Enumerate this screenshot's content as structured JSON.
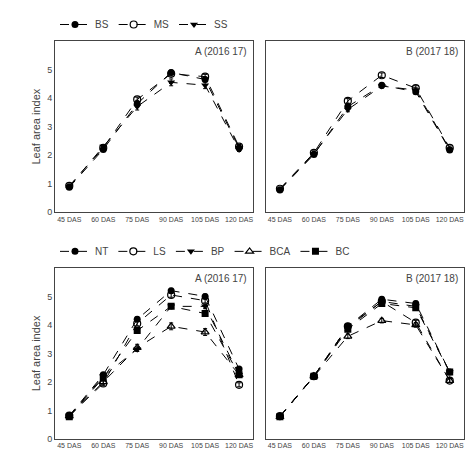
{
  "chart_data": [
    {
      "type": "line",
      "title": "A (2016 17)",
      "ylabel": "Leaf area index",
      "categories": [
        "45 DAS",
        "60 DAS",
        "75 DAS",
        "90 DAS",
        "105 DAS",
        "120 DAS"
      ],
      "series": [
        {
          "name": "BS",
          "color": "#000000",
          "marker": "circle",
          "line_style": "dashed",
          "values": [
            0.87,
            2.2,
            3.8,
            4.9,
            4.65,
            2.25
          ],
          "errors": [
            0.07,
            0.07,
            0.12,
            0.08,
            0.08,
            0.12
          ]
        },
        {
          "name": "MS",
          "color": "#000000",
          "marker": "circle-open",
          "line_style": "dashed",
          "values": [
            0.92,
            2.25,
            3.95,
            4.85,
            4.75,
            2.3
          ],
          "errors": [
            0.07,
            0.07,
            0.08,
            0.08,
            0.08,
            0.07
          ]
        },
        {
          "name": "SS",
          "color": "#000000",
          "marker": "triangle-down",
          "line_style": "dashed",
          "values": [
            0.9,
            2.3,
            3.7,
            4.55,
            4.45,
            2.2
          ],
          "errors": [
            0.07,
            0.07,
            0.12,
            0.12,
            0.12,
            0.07
          ]
        }
      ],
      "ylim": [
        0,
        6
      ],
      "yticks": [
        0,
        1,
        2,
        3,
        4,
        5
      ],
      "grid": false,
      "legend": "top"
    },
    {
      "type": "line",
      "title": "B (2017 18)",
      "categories": [
        "45 DAS",
        "60 DAS",
        "75 DAS",
        "90 DAS",
        "105 DAS",
        "120 DAS"
      ],
      "series": [
        {
          "name": "BS",
          "color": "#000000",
          "marker": "circle",
          "line_style": "dashed",
          "values": [
            0.78,
            2.02,
            3.7,
            4.45,
            4.22,
            2.18
          ],
          "errors": [
            0.06,
            0.07,
            0.08,
            0.08,
            0.08,
            0.07
          ]
        },
        {
          "name": "MS",
          "color": "#000000",
          "marker": "circle-open",
          "line_style": "dashed",
          "values": [
            0.82,
            2.08,
            3.9,
            4.8,
            4.35,
            2.25
          ],
          "errors": [
            0.06,
            0.07,
            0.08,
            0.08,
            0.08,
            0.07
          ]
        },
        {
          "name": "SS",
          "color": "#000000",
          "marker": "triangle-down",
          "line_style": "dashed",
          "values": [
            0.8,
            2.05,
            3.6,
            4.42,
            4.28,
            2.2
          ],
          "errors": [
            0.06,
            0.07,
            0.08,
            0.08,
            0.08,
            0.07
          ]
        }
      ],
      "ylim": [
        0,
        6
      ],
      "yticks": [
        0,
        1,
        2,
        3,
        4,
        5
      ],
      "grid": false,
      "tick_labels": "x"
    },
    {
      "type": "line",
      "title": "A (2016 17)",
      "ylabel": "Leaf area index",
      "categories": [
        "45 DAS",
        "60 DAS",
        "75 DAS",
        "90 DAS",
        "105 DAS",
        "120 DAS"
      ],
      "series": [
        {
          "name": "NT",
          "color": "#000000",
          "marker": "circle",
          "line_style": "dashed",
          "values": [
            0.82,
            2.25,
            4.2,
            5.2,
            5.0,
            2.45
          ],
          "errors": [
            0.07,
            0.08,
            0.08,
            0.08,
            0.08,
            0.07
          ]
        },
        {
          "name": "LS",
          "color": "#000000",
          "marker": "circle-open",
          "line_style": "dashed",
          "values": [
            0.82,
            1.95,
            4.05,
            5.05,
            4.85,
            1.9
          ],
          "errors": [
            0.07,
            0.08,
            0.08,
            0.08,
            0.08,
            0.07
          ]
        },
        {
          "name": "BP",
          "color": "#000000",
          "marker": "triangle-down",
          "line_style": "dashed",
          "values": [
            0.8,
            2.2,
            3.15,
            4.65,
            4.65,
            2.25
          ],
          "errors": [
            0.07,
            0.08,
            0.08,
            0.08,
            0.08,
            0.07
          ]
        },
        {
          "name": "BCA",
          "color": "#000000",
          "marker": "triangle-up-open",
          "line_style": "dashed",
          "values": [
            0.8,
            2.0,
            3.2,
            3.95,
            3.75,
            2.25
          ],
          "errors": [
            0.07,
            0.08,
            0.12,
            0.12,
            0.12,
            0.07
          ]
        },
        {
          "name": "BC",
          "color": "#000000",
          "marker": "square",
          "line_style": "dashed",
          "values": [
            0.78,
            2.15,
            3.8,
            4.65,
            4.4,
            2.25
          ],
          "errors": [
            0.07,
            0.08,
            0.08,
            0.08,
            0.08,
            0.07
          ]
        }
      ],
      "ylim": [
        0,
        6
      ],
      "yticks": [
        0,
        1,
        2,
        3,
        4,
        5
      ],
      "grid": false,
      "legend": "top"
    },
    {
      "type": "line",
      "title": "B (2017 18)",
      "categories": [
        "45 DAS",
        "60 DAS",
        "75 DAS",
        "90 DAS",
        "105 DAS",
        "120 DAS"
      ],
      "series": [
        {
          "name": "NT",
          "color": "#000000",
          "marker": "circle",
          "line_style": "dashed",
          "values": [
            0.8,
            2.2,
            3.95,
            4.9,
            4.75,
            2.35
          ],
          "errors": [
            0.07,
            0.07,
            0.08,
            0.08,
            0.08,
            0.07
          ]
        },
        {
          "name": "LS",
          "color": "#000000",
          "marker": "circle-open",
          "line_style": "dashed",
          "values": [
            0.8,
            2.2,
            3.95,
            4.82,
            4.08,
            2.05
          ],
          "errors": [
            0.07,
            0.07,
            0.08,
            0.08,
            0.08,
            0.07
          ]
        },
        {
          "name": "BP",
          "color": "#000000",
          "marker": "triangle-down",
          "line_style": "dashed",
          "values": [
            0.78,
            2.2,
            3.9,
            4.82,
            4.65,
            2.35
          ],
          "errors": [
            0.07,
            0.07,
            0.08,
            0.08,
            0.08,
            0.07
          ]
        },
        {
          "name": "BCA",
          "color": "#000000",
          "marker": "triangle-up-open",
          "line_style": "dashed",
          "values": [
            0.78,
            2.2,
            3.6,
            4.15,
            4.0,
            2.05
          ],
          "errors": [
            0.07,
            0.07,
            0.08,
            0.08,
            0.08,
            0.07
          ]
        },
        {
          "name": "BC",
          "color": "#000000",
          "marker": "square",
          "line_style": "dashed",
          "values": [
            0.78,
            2.2,
            3.85,
            4.75,
            4.6,
            2.35
          ],
          "errors": [
            0.07,
            0.07,
            0.08,
            0.08,
            0.08,
            0.07
          ]
        }
      ],
      "ylim": [
        0,
        6
      ],
      "yticks": [
        0,
        1,
        2,
        3,
        4,
        5
      ],
      "grid": false,
      "tick_labels": "x"
    }
  ]
}
